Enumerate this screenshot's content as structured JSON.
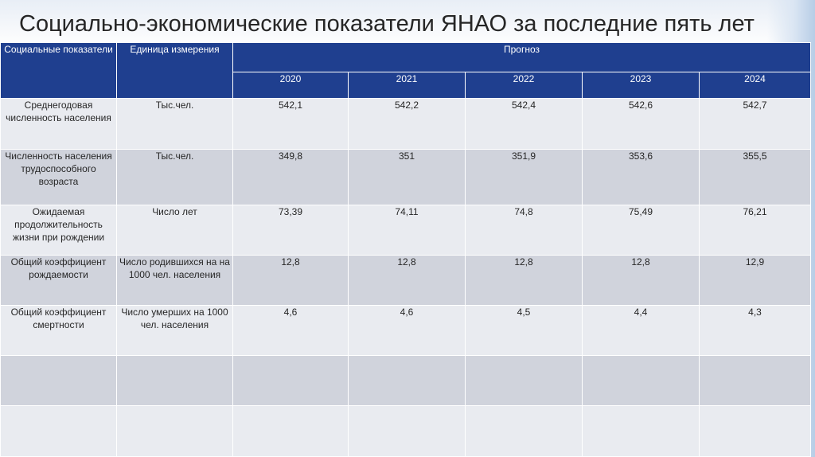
{
  "title": "Социально-экономические показатели ЯНАО за последние пять лет",
  "table": {
    "headers": {
      "indicator": "Социальные показатели",
      "unit": "Единица измерения",
      "forecast": "Прогноз",
      "years": [
        "2020",
        "2021",
        "2022",
        "2023",
        "2024"
      ]
    },
    "rows": [
      {
        "indicator": "Среднегодовая численность населения",
        "unit": "Тыс.чел.",
        "values": [
          "542,1",
          "542,2",
          "542,4",
          "542,6",
          "542,7"
        ]
      },
      {
        "indicator": "Численность населения трудоспособного возраста",
        "unit": "Тыс.чел.",
        "values": [
          "349,8",
          "351",
          "351,9",
          "353,6",
          "355,5"
        ]
      },
      {
        "indicator": "Ожидаемая продолжительность жизни при рождении",
        "unit": "Число лет",
        "values": [
          "73,39",
          "74,11",
          "74,8",
          "75,49",
          "76,21"
        ]
      },
      {
        "indicator": "Общий коэффициент рождаемости",
        "unit": "Число родившихся на на 1000 чел. населения",
        "values": [
          "12,8",
          "12,8",
          "12,8",
          "12,8",
          "12,9"
        ]
      },
      {
        "indicator": "Общий коэффициент смертности",
        "unit": "Число умерших на 1000 чел. населения",
        "values": [
          "4,6",
          "4,6",
          "4,5",
          "4,4",
          "4,3"
        ]
      },
      {
        "indicator": "",
        "unit": "",
        "values": [
          "",
          "",
          "",
          "",
          ""
        ]
      },
      {
        "indicator": "",
        "unit": "",
        "values": [
          "",
          "",
          "",
          "",
          ""
        ]
      }
    ]
  },
  "colors": {
    "header_bg": "#1f3f8f",
    "row_light": "#e9ebf0",
    "row_dark": "#d0d3dc",
    "text": "#262626"
  }
}
